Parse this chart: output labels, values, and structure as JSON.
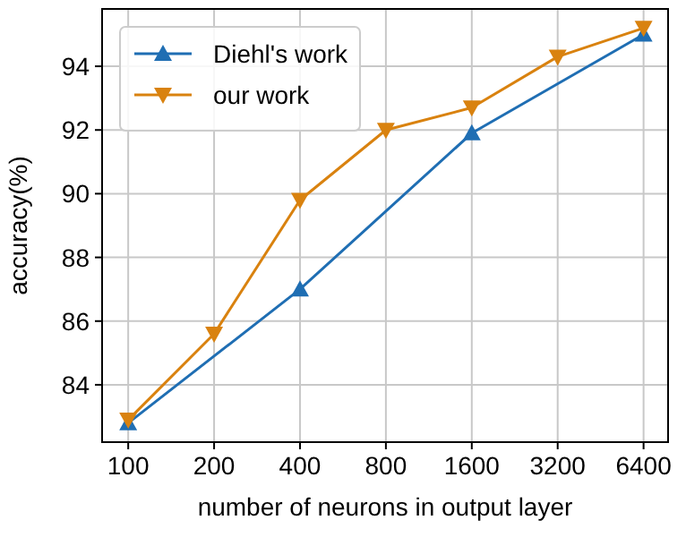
{
  "chart_data": {
    "type": "line",
    "xlabel": "number of neurons in output layer",
    "ylabel": "accuracy(%)",
    "log": "x",
    "xlim": [
      81,
      7800
    ],
    "xticks": [
      100,
      200,
      400,
      800,
      1600,
      3200,
      6400
    ],
    "ylim": [
      82.2,
      95.8
    ],
    "yticks": [
      84,
      86,
      88,
      90,
      92,
      94
    ],
    "grid": true,
    "legend": "top left",
    "series": [
      {
        "name": "Diehl's work",
        "color": "#1f6eb3",
        "marker": "triangle",
        "x": [
          100,
          400,
          1600,
          6400
        ],
        "values": [
          82.8,
          87.0,
          91.9,
          95.0
        ]
      },
      {
        "name": "our work",
        "color": "#d9820f",
        "marker": "triangle-down",
        "x": [
          100,
          200,
          400,
          800,
          1600,
          3200,
          6400
        ],
        "values": [
          82.9,
          85.6,
          89.8,
          92.0,
          92.7,
          94.3,
          95.2
        ]
      }
    ]
  }
}
